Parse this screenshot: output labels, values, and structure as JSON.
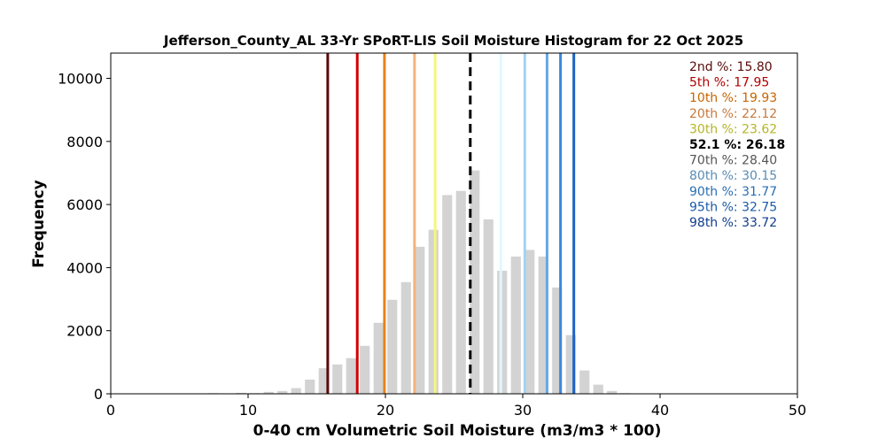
{
  "chart_data": {
    "type": "bar",
    "title": "Jefferson_County_AL 33-Yr SPoRT-LIS Soil Moisture Histogram for 22 Oct 2025",
    "xlabel": "0-40 cm Volumetric Soil Moisture (m3/m3 * 100)",
    "ylabel": "Frequency",
    "xlim": [
      0,
      50
    ],
    "ylim": [
      0,
      10800
    ],
    "xticks": [
      0,
      10,
      20,
      30,
      40,
      50
    ],
    "yticks": [
      0,
      2000,
      4000,
      6000,
      8000,
      10000
    ],
    "bar_color": "#d3d3d3",
    "bin_width": 1,
    "bins": [
      {
        "x": 7.5,
        "value": 20
      },
      {
        "x": 8.5,
        "value": 10
      },
      {
        "x": 9.5,
        "value": 30
      },
      {
        "x": 10.5,
        "value": 20
      },
      {
        "x": 11.5,
        "value": 60
      },
      {
        "x": 12.5,
        "value": 90
      },
      {
        "x": 13.5,
        "value": 180
      },
      {
        "x": 14.5,
        "value": 450
      },
      {
        "x": 15.5,
        "value": 810
      },
      {
        "x": 16.5,
        "value": 930
      },
      {
        "x": 17.5,
        "value": 1130
      },
      {
        "x": 18.5,
        "value": 1520
      },
      {
        "x": 19.5,
        "value": 2250
      },
      {
        "x": 20.5,
        "value": 2980
      },
      {
        "x": 21.5,
        "value": 3540
      },
      {
        "x": 22.5,
        "value": 4660
      },
      {
        "x": 23.5,
        "value": 5200
      },
      {
        "x": 24.5,
        "value": 6300
      },
      {
        "x": 25.5,
        "value": 6430
      },
      {
        "x": 26.5,
        "value": 7080
      },
      {
        "x": 27.5,
        "value": 5530
      },
      {
        "x": 28.5,
        "value": 3900
      },
      {
        "x": 29.5,
        "value": 4350
      },
      {
        "x": 30.5,
        "value": 4560
      },
      {
        "x": 31.5,
        "value": 4350
      },
      {
        "x": 32.5,
        "value": 3370
      },
      {
        "x": 33.5,
        "value": 1860
      },
      {
        "x": 34.5,
        "value": 740
      },
      {
        "x": 35.5,
        "value": 290
      },
      {
        "x": 36.5,
        "value": 90
      },
      {
        "x": 37.5,
        "value": 20
      }
    ],
    "percentiles": [
      {
        "label": "2nd %: 15.80",
        "value": 15.8,
        "color": "#5a0a0a",
        "text_color": "#5a0a0a",
        "dashed": false
      },
      {
        "label": "5th %: 17.95",
        "value": 17.95,
        "color": "#d40000",
        "text_color": "#b00000",
        "dashed": false
      },
      {
        "label": "10th %: 19.93",
        "value": 19.93,
        "color": "#e8801a",
        "text_color": "#c86400",
        "dashed": false
      },
      {
        "label": "20th %: 22.12",
        "value": 22.12,
        "color": "#f5b27a",
        "text_color": "#c8783c",
        "dashed": false
      },
      {
        "label": "30th %: 23.62",
        "value": 23.62,
        "color": "#f5f57a",
        "text_color": "#b4b428",
        "dashed": false
      },
      {
        "label": "52.1 %: 26.18",
        "value": 26.18,
        "color": "#000000",
        "text_color": "#000000",
        "dashed": true
      },
      {
        "label": "70th %: 28.40",
        "value": 28.4,
        "color": "#e0f8ff",
        "text_color": "#555555",
        "dashed": false
      },
      {
        "label": "80th %: 30.15",
        "value": 30.15,
        "color": "#a0d4f0",
        "text_color": "#5a8cb4",
        "dashed": false
      },
      {
        "label": "90th %: 31.77",
        "value": 31.77,
        "color": "#64a8e6",
        "text_color": "#2a6eb4",
        "dashed": false
      },
      {
        "label": "95th %: 32.75",
        "value": 32.75,
        "color": "#3c88dc",
        "text_color": "#1c5aa8",
        "dashed": false
      },
      {
        "label": "98th %: 33.72",
        "value": 33.72,
        "color": "#1c64c8",
        "text_color": "#103c8c",
        "dashed": false
      }
    ]
  }
}
